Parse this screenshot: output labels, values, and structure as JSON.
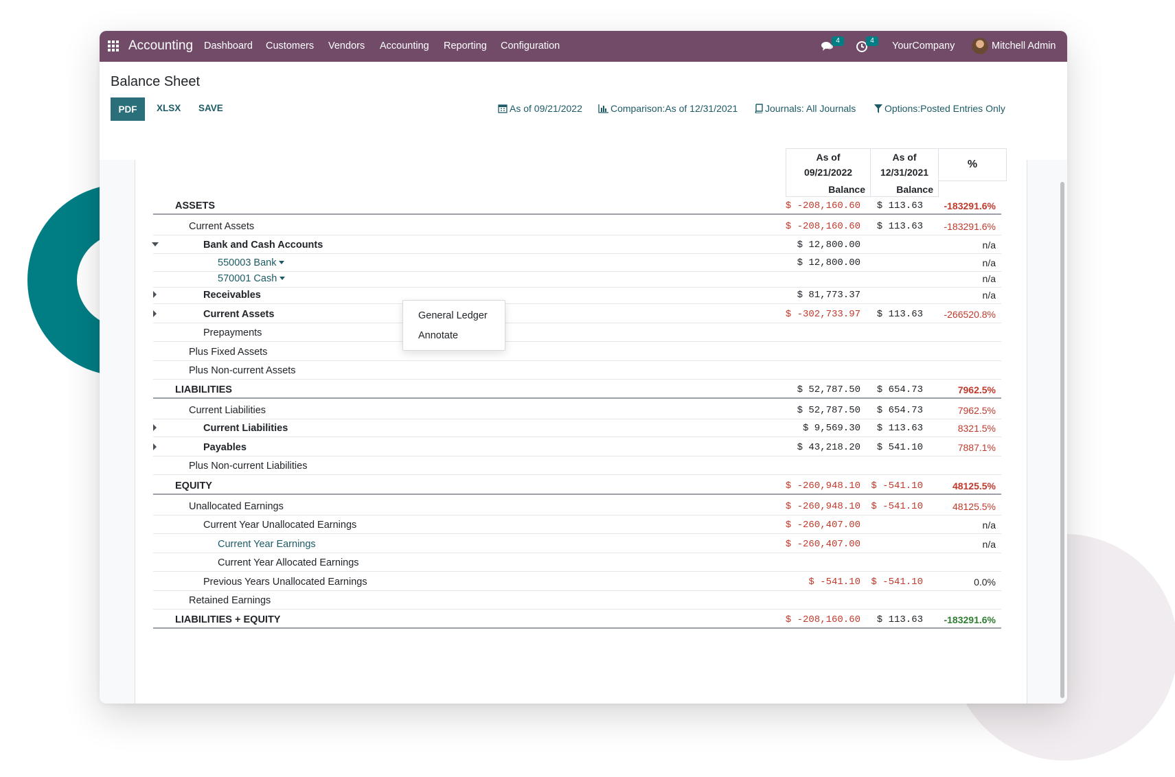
{
  "navbar": {
    "app_title": "Accounting",
    "menu": [
      "Dashboard",
      "Customers",
      "Vendors",
      "Accounting",
      "Reporting",
      "Configuration"
    ],
    "messages_count": "4",
    "activities_count": "4",
    "company": "YourCompany",
    "user": "Mitchell Admin",
    "color": "#714b67"
  },
  "control": {
    "title": "Balance Sheet",
    "buttons": {
      "pdf": "PDF",
      "xlsx": "XLSX",
      "save": "SAVE"
    },
    "filters": {
      "date": "As of 09/21/2022",
      "comparison": "Comparison:As of 12/31/2021",
      "journals": "Journals: All Journals",
      "options": "Options:Posted Entries Only"
    }
  },
  "table": {
    "headers": {
      "col1_line1": "As of",
      "col1_line2": "09/21/2022",
      "col1_sub": "Balance",
      "col2_line1": "As of",
      "col2_line2": "12/31/2021",
      "col2_sub": "Balance",
      "pct": "%"
    },
    "rows": [
      {
        "label": "ASSETS",
        "level": 0,
        "style": "section",
        "v1": "$ -208,160.60",
        "v2": "$ 113.63",
        "pct": "-183291.6%"
      },
      {
        "label": "Current Assets",
        "level": 1,
        "style": "plain",
        "v1": "$ -208,160.60",
        "v2": "$ 113.63",
        "pct": "-183291.6%"
      },
      {
        "label": "Bank and Cash Accounts",
        "level": 2,
        "style": "bold",
        "caret": "down",
        "v1": "$ 12,800.00",
        "v2": "",
        "pct": "n/a"
      },
      {
        "label": "550003 Bank",
        "level": 3,
        "style": "teal",
        "dropdown": true,
        "v1": "$ 12,800.00",
        "v2": "",
        "pct": "n/a"
      },
      {
        "label": "570001 Cash",
        "level": 3,
        "style": "teal",
        "dropdown": true,
        "v1": "",
        "v2": "",
        "pct": "n/a"
      },
      {
        "label": "Receivables",
        "level": 2,
        "style": "bold",
        "caret": "right",
        "v1": "$ 81,773.37",
        "v2": "",
        "pct": "n/a"
      },
      {
        "label": "Current Assets",
        "level": 2,
        "style": "bold",
        "caret": "right",
        "v1": "$ -302,733.97",
        "v2": "$ 113.63",
        "pct": "-266520.8%"
      },
      {
        "label": "Prepayments",
        "level": 2,
        "style": "plain",
        "v1": "",
        "v2": "",
        "pct": ""
      },
      {
        "label": "Plus Fixed Assets",
        "level": 1,
        "style": "plain",
        "v1": "",
        "v2": "",
        "pct": ""
      },
      {
        "label": "Plus Non-current Assets",
        "level": 1,
        "style": "plain",
        "v1": "",
        "v2": "",
        "pct": ""
      },
      {
        "label": "LIABILITIES",
        "level": 0,
        "style": "section",
        "v1": "$ 52,787.50",
        "v2": "$ 654.73",
        "pct": "7962.5%"
      },
      {
        "label": "Current Liabilities",
        "level": 1,
        "style": "plain",
        "v1": "$ 52,787.50",
        "v2": "$ 654.73",
        "pct": "7962.5%"
      },
      {
        "label": "Current Liabilities",
        "level": 2,
        "style": "bold",
        "caret": "right",
        "v1": "$ 9,569.30",
        "v2": "$ 113.63",
        "pct": "8321.5%"
      },
      {
        "label": "Payables",
        "level": 2,
        "style": "bold",
        "caret": "right",
        "v1": "$ 43,218.20",
        "v2": "$ 541.10",
        "pct": "7887.1%"
      },
      {
        "label": "Plus Non-current Liabilities",
        "level": 1,
        "style": "plain",
        "v1": "",
        "v2": "",
        "pct": ""
      },
      {
        "label": "EQUITY",
        "level": 0,
        "style": "section",
        "v1": "$ -260,948.10",
        "v2": "$ -541.10",
        "pct": "48125.5%"
      },
      {
        "label": "Unallocated Earnings",
        "level": 1,
        "style": "plain",
        "v1": "$ -260,948.10",
        "v2": "$ -541.10",
        "pct": "48125.5%"
      },
      {
        "label": "Current Year Unallocated Earnings",
        "level": 2,
        "style": "plain",
        "v1": "$ -260,407.00",
        "v2": "",
        "pct": "n/a"
      },
      {
        "label": "Current Year Earnings",
        "level": 3,
        "style": "teal",
        "v1": "$ -260,407.00",
        "v2": "",
        "pct": "n/a"
      },
      {
        "label": "Current Year Allocated Earnings",
        "level": 3,
        "style": "plain",
        "v1": "",
        "v2": "",
        "pct": ""
      },
      {
        "label": "Previous Years Unallocated Earnings",
        "level": 2,
        "style": "plain",
        "v1": "$ -541.10",
        "v2": "$ -541.10",
        "pct": "0.0%"
      },
      {
        "label": "Retained Earnings",
        "level": 1,
        "style": "plain",
        "v1": "",
        "v2": "",
        "pct": ""
      },
      {
        "label": "LIABILITIES + EQUITY",
        "level": 0,
        "style": "section",
        "v1": "$ -208,160.60",
        "v2": "$ 113.63",
        "pct": "-183291.6%",
        "pct_color": "green"
      }
    ]
  },
  "dropdown_menu": {
    "items": [
      "General Ledger",
      "Annotate"
    ]
  },
  "colors": {
    "negative": "#c0392b",
    "positive_pct": "#2e7d32",
    "teal": "#017e84",
    "link": "#1c5b66"
  }
}
